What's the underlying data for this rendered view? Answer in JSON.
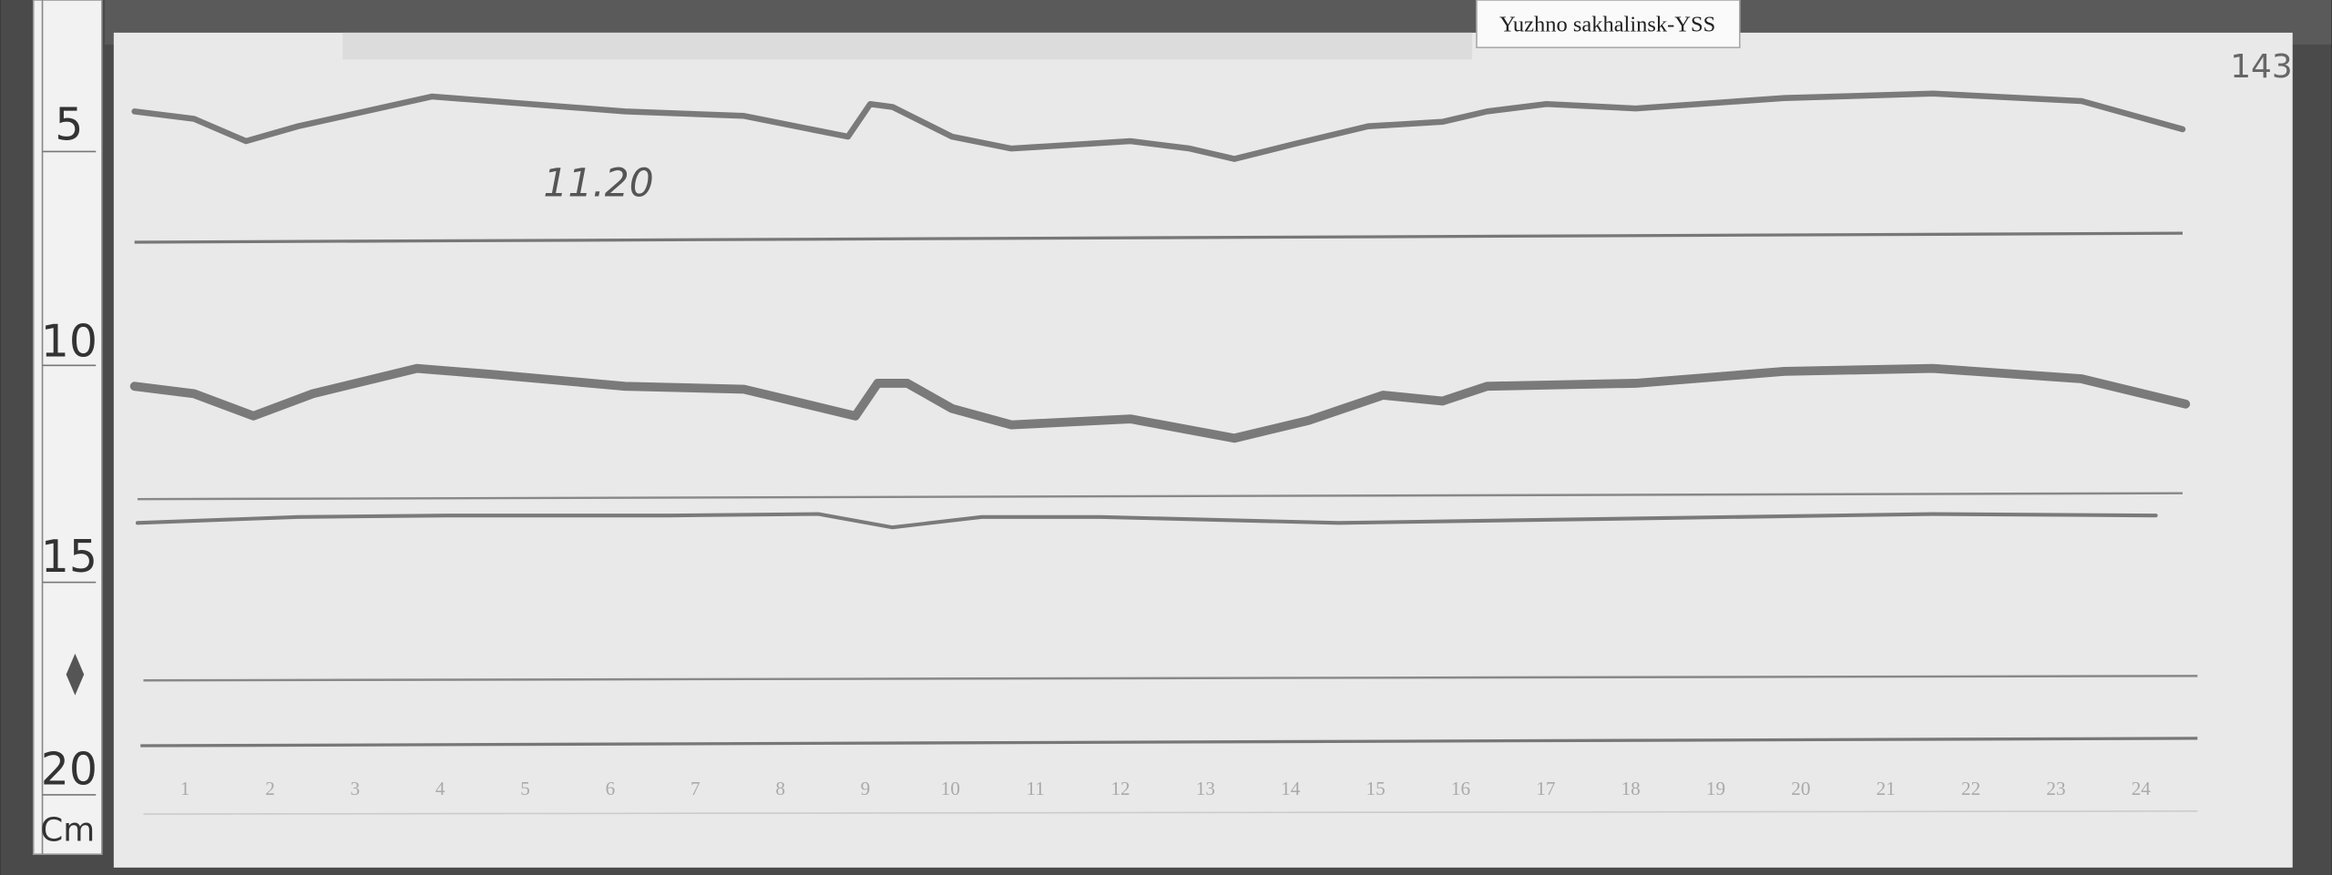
{
  "label": "Yuzhno sakhalinsk-YSS",
  "annotation": "11.20",
  "page_number": "143",
  "ruler": [
    "5",
    "10",
    "15",
    "20",
    "Cm"
  ],
  "hours": [
    "1",
    "2",
    "3",
    "4",
    "5",
    "6",
    "7",
    "8",
    "9",
    "10",
    "11",
    "12",
    "13",
    "14",
    "15",
    "16",
    "17",
    "18",
    "19",
    "20",
    "21",
    "22",
    "23",
    "24"
  ]
}
